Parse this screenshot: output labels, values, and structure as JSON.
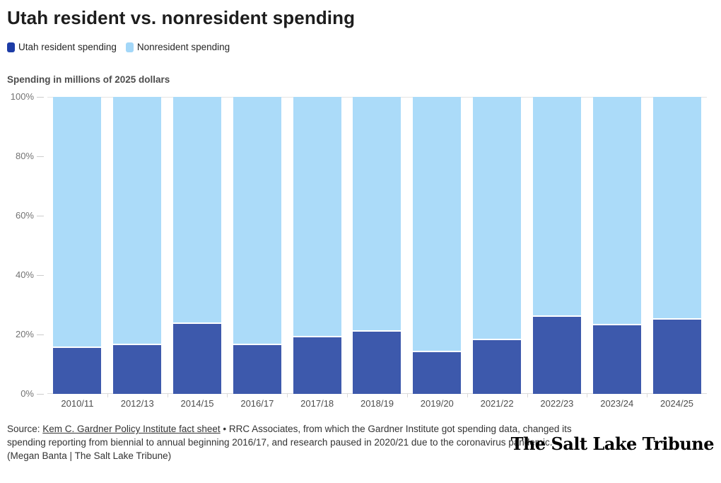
{
  "title": "Utah resident vs. nonresident spending",
  "subtitle": "Spending in millions of 2025 dollars",
  "legend": {
    "items": [
      {
        "label": "Utah resident spending",
        "color": "#1d3ca6"
      },
      {
        "label": "Nonresident spending",
        "color": "#a3d7f8"
      }
    ]
  },
  "chart_data": {
    "type": "bar",
    "stacked": true,
    "percent": true,
    "title": "Utah resident vs. nonresident spending",
    "subtitle": "Spending in millions of 2025 dollars",
    "categories": [
      "2010/11",
      "2012/13",
      "2014/15",
      "2016/17",
      "2017/18",
      "2018/19",
      "2019/20",
      "2021/22",
      "2022/23",
      "2023/24",
      "2024/25"
    ],
    "series": [
      {
        "name": "Utah resident spending",
        "color": "#3d59ac",
        "values": [
          15.5,
          16.5,
          23.5,
          16.5,
          19,
          21,
          14,
          18,
          26,
          23,
          25
        ]
      },
      {
        "name": "Nonresident spending",
        "color": "#abdbf9",
        "values": [
          84.5,
          83.5,
          76.5,
          83.5,
          81,
          79,
          86,
          82,
          74,
          77,
          75
        ]
      }
    ],
    "y_ticks": [
      "100%",
      "80%",
      "60%",
      "40%",
      "20%",
      "0%"
    ],
    "ylim": [
      0,
      100
    ],
    "grid": false,
    "legend_position": "top"
  },
  "source": {
    "prefix": "Source: ",
    "link_text": "Kem C. Gardner Policy Institute fact sheet",
    "rest": " • RRC Associates, from which the Gardner Institute got spending data, changed its spending reporting from biennial to annual beginning 2016/17, and research paused in 2020/21 due to the coronavirus pandemic."
  },
  "credit": "(Megan Banta | The Salt Lake Tribune)",
  "logo_text": "The Salt Lake Tribune"
}
